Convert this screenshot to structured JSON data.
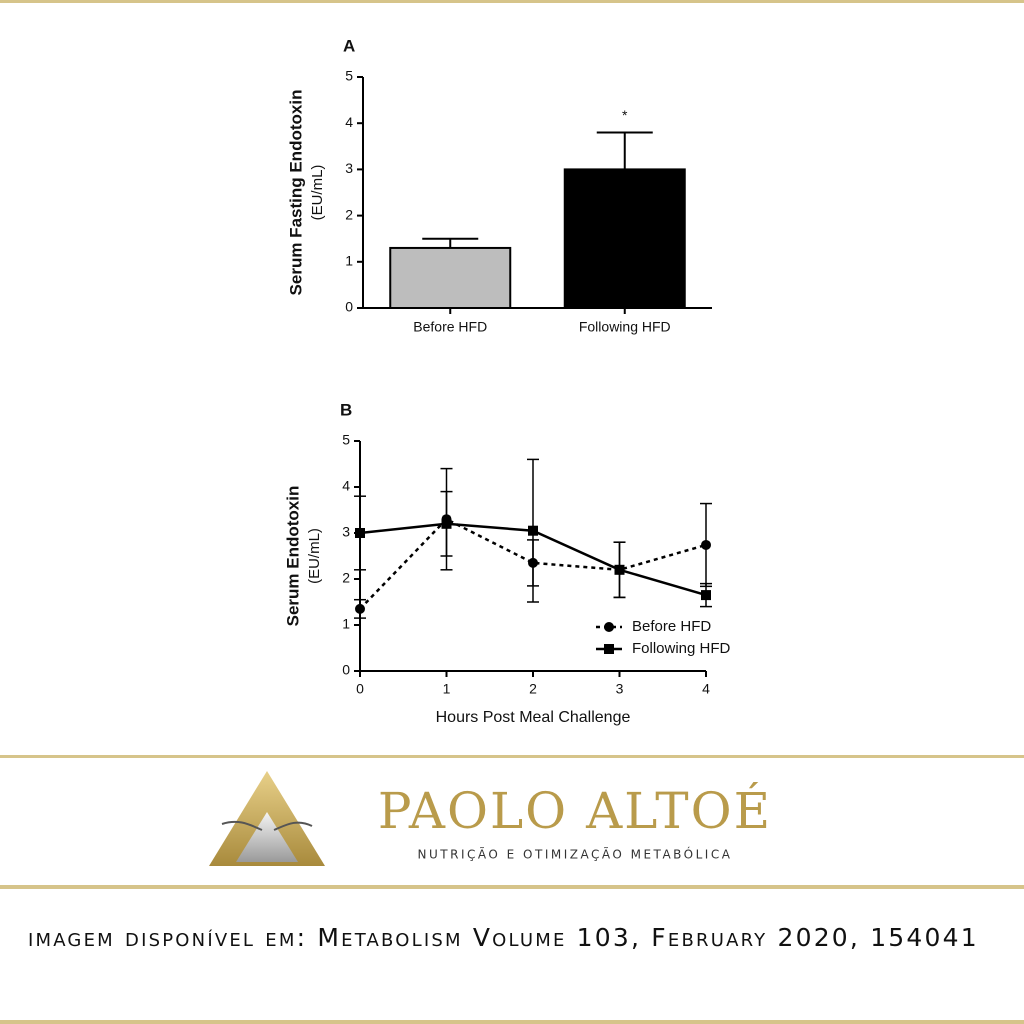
{
  "chart_data": [
    {
      "type": "bar",
      "panel": "A",
      "ylabel": [
        "Serum Fasting Endotoxin",
        "(EU/mL)"
      ],
      "categories": [
        "Before HFD",
        "Following HFD"
      ],
      "values": [
        1.3,
        3.0
      ],
      "errors": [
        0.2,
        0.8
      ],
      "colors": [
        "#bdbdbd",
        "#000000"
      ],
      "annotation": "*",
      "ylim": [
        0,
        5
      ],
      "yticks": [
        0,
        1,
        2,
        3,
        4,
        5
      ]
    },
    {
      "type": "line",
      "panel": "B",
      "ylabel": [
        "Serum Endotoxin",
        "(EU/mL)"
      ],
      "xlabel": "Hours Post Meal Challenge",
      "x": [
        0,
        1,
        2,
        3,
        4
      ],
      "series": [
        {
          "name": "Before HFD",
          "color": "#000000",
          "linestyle": "dotted",
          "marker": "circle",
          "values": [
            1.35,
            3.3,
            2.35,
            2.2,
            2.74
          ],
          "errors": [
            0.2,
            1.1,
            0.5,
            0.6,
            0.9
          ]
        },
        {
          "name": "Following HFD",
          "color": "#000000",
          "linestyle": "solid",
          "marker": "square",
          "values": [
            3.0,
            3.2,
            3.05,
            2.2,
            1.65
          ],
          "errors": [
            0.8,
            0.7,
            1.55,
            0.6,
            0.25
          ]
        }
      ],
      "xlim": [
        0,
        4
      ],
      "xticks": [
        0,
        1,
        2,
        3,
        4
      ],
      "ylim": [
        0,
        5
      ],
      "yticks": [
        0,
        1,
        2,
        3,
        4,
        5
      ],
      "legend": "lower right"
    }
  ],
  "brand": {
    "name": "PAOLO ALTOÉ",
    "tagline": "NUTRIÇÃO E OTIMIZAÇÃO METABÓLICA"
  },
  "caption": "imagem disponível em: Metabolism Volume 103, February 2020, 154041"
}
